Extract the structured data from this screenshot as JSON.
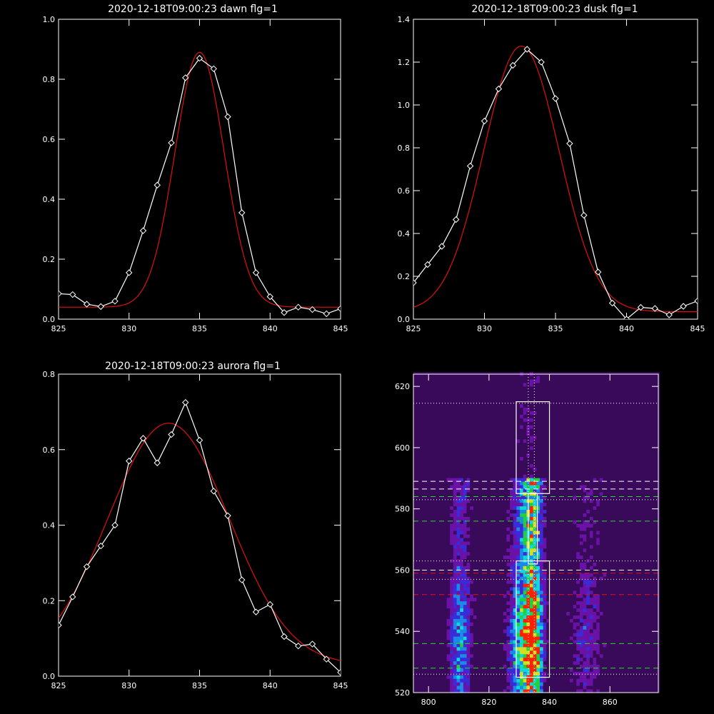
{
  "colors": {
    "background": "#000000",
    "axes": "#ffffff",
    "data_line": "#ffffff",
    "fit_line": "#e01010",
    "dashed_white": "#ffffff",
    "dashed_green": "#22dd22",
    "dashed_red": "#e01010"
  },
  "chart_data": [
    {
      "type": "line",
      "title": "2020-12-18T09:00:23 dawn flg=1",
      "xlim": [
        825,
        845
      ],
      "ylim": [
        0,
        1.0
      ],
      "xticks": [
        "825",
        "830",
        "835",
        "840",
        "845"
      ],
      "yticks": [
        "0.0",
        "0.2",
        "0.4",
        "0.6",
        "0.8",
        "1.0"
      ],
      "xtick_values": [
        825,
        830,
        835,
        840,
        845
      ],
      "ytick_values": [
        0,
        0.2,
        0.4,
        0.6,
        0.8,
        1.0
      ],
      "series": [
        {
          "kind": "data",
          "markers": "diamond",
          "x": [
            825,
            826,
            827,
            828,
            829,
            830,
            831,
            832,
            833,
            834,
            835,
            836,
            837,
            838,
            839,
            840,
            841,
            842,
            843,
            844,
            845
          ],
          "y": [
            0.085,
            0.082,
            0.05,
            0.042,
            0.06,
            0.155,
            0.295,
            0.447,
            0.588,
            0.805,
            0.87,
            0.835,
            0.675,
            0.355,
            0.155,
            0.075,
            0.022,
            0.04,
            0.032,
            0.018,
            0.035
          ]
        },
        {
          "kind": "fit",
          "gaussian": {
            "amp": 0.85,
            "center": 835.0,
            "sigma": 1.75,
            "offset": 0.04
          }
        }
      ]
    },
    {
      "type": "line",
      "title": "2020-12-18T09:00:23 dusk flg=1",
      "xlim": [
        825,
        845
      ],
      "ylim": [
        0,
        1.4
      ],
      "xticks": [
        "825",
        "830",
        "835",
        "840",
        "845"
      ],
      "yticks": [
        "0.0",
        "0.2",
        "0.4",
        "0.6",
        "0.8",
        "1.0",
        "1.2",
        "1.4"
      ],
      "xtick_values": [
        825,
        830,
        835,
        840,
        845
      ],
      "ytick_values": [
        0,
        0.2,
        0.4,
        0.6,
        0.8,
        1.0,
        1.2,
        1.4
      ],
      "series": [
        {
          "kind": "data",
          "markers": "diamond",
          "x": [
            825,
            826,
            827,
            828,
            829,
            830,
            831,
            832,
            833,
            834,
            835,
            836,
            837,
            838,
            839,
            840,
            841,
            842,
            843,
            844,
            845
          ],
          "y": [
            0.17,
            0.255,
            0.34,
            0.465,
            0.715,
            0.925,
            1.075,
            1.185,
            1.26,
            1.2,
            1.03,
            0.82,
            0.485,
            0.22,
            0.075,
            0.0,
            0.055,
            0.05,
            0.02,
            0.06,
            0.085
          ]
        },
        {
          "kind": "fit",
          "gaussian": {
            "amp": 1.24,
            "center": 832.6,
            "sigma": 2.65,
            "offset": 0.035
          }
        }
      ]
    },
    {
      "type": "line",
      "title": "2020-12-18T09:00:23 aurora flg=1",
      "xlim": [
        825,
        845
      ],
      "ylim": [
        0,
        0.8
      ],
      "xticks": [
        "825",
        "830",
        "835",
        "840",
        "845"
      ],
      "yticks": [
        "0.0",
        "0.2",
        "0.4",
        "0.6",
        "0.8"
      ],
      "xtick_values": [
        825,
        830,
        835,
        840,
        845
      ],
      "ytick_values": [
        0,
        0.2,
        0.4,
        0.6,
        0.8
      ],
      "series": [
        {
          "kind": "data",
          "markers": "diamond",
          "x": [
            825,
            826,
            827,
            828,
            829,
            830,
            831,
            832,
            833,
            834,
            835,
            836,
            837,
            838,
            839,
            840,
            841,
            842,
            843,
            844,
            845
          ],
          "y": [
            0.135,
            0.21,
            0.29,
            0.345,
            0.4,
            0.57,
            0.63,
            0.565,
            0.64,
            0.725,
            0.625,
            0.49,
            0.425,
            0.255,
            0.17,
            0.19,
            0.105,
            0.08,
            0.085,
            0.045,
            0.01
          ]
        },
        {
          "kind": "fit",
          "gaussian": {
            "amp": 0.64,
            "center": 832.8,
            "sigma": 4.3,
            "offset": 0.03
          }
        }
      ]
    },
    {
      "type": "heatmap",
      "title": "",
      "xlim": [
        795,
        876
      ],
      "ylim": [
        520,
        624
      ],
      "xticks": [
        "800",
        "820",
        "840",
        "860"
      ],
      "yticks": [
        "520",
        "540",
        "560",
        "580",
        "600",
        "620"
      ],
      "xtick_values": [
        800,
        820,
        840,
        860
      ],
      "ytick_values": [
        520,
        540,
        560,
        580,
        600,
        620
      ],
      "colormap": [
        "#000000",
        "#3a0a5a",
        "#6a12a8",
        "#3a2ad8",
        "#1a8ae8",
        "#10d8d8",
        "#20d040",
        "#d0e020",
        "#ff2000"
      ],
      "grid_step_x": 1.1,
      "grid_step_y": 1.15,
      "intensity_columns": [
        {
          "center": 834,
          "width": 2.3,
          "peak": 1.0
        },
        {
          "center": 830,
          "width": 3.2,
          "peak": 0.6
        },
        {
          "center": 810,
          "width": 2.7,
          "peak": 0.55
        },
        {
          "center": 852,
          "width": 4.0,
          "peak": 0.3
        }
      ],
      "vertical_dotted_lines_x": [
        833,
        835
      ],
      "horizontal_lines": [
        {
          "y": 614.5,
          "style": "dotted",
          "color": "#ffffff"
        },
        {
          "y": 589,
          "style": "dashed",
          "color": "#ffffff"
        },
        {
          "y": 586.5,
          "style": "dashed",
          "color": "#ffffff"
        },
        {
          "y": 583,
          "style": "dotted",
          "color": "#ffffff"
        },
        {
          "y": 584,
          "style": "dashed",
          "color": "#22dd22"
        },
        {
          "y": 576,
          "style": "dashed",
          "color": "#22dd22"
        },
        {
          "y": 563,
          "style": "dotted",
          "color": "#ffffff"
        },
        {
          "y": 560,
          "style": "dashed",
          "color": "#ffffff"
        },
        {
          "y": 559,
          "style": "dashed",
          "color": "#e01010"
        },
        {
          "y": 557,
          "style": "dotted",
          "color": "#ffffff"
        },
        {
          "y": 552,
          "style": "dashed",
          "color": "#e01010"
        },
        {
          "y": 536,
          "style": "dashed",
          "color": "#22dd22"
        },
        {
          "y": 528,
          "style": "dashed",
          "color": "#22dd22"
        },
        {
          "y": 526,
          "style": "dotted",
          "color": "#ffffff"
        }
      ],
      "rectangles": [
        {
          "x0": 829,
          "x1": 840,
          "y0": 585,
          "y1": 615
        },
        {
          "x0": 829,
          "x1": 840,
          "y0": 525,
          "y1": 563
        },
        {
          "x0": 833,
          "x1": 836,
          "y0": 562,
          "y1": 585
        }
      ]
    }
  ]
}
